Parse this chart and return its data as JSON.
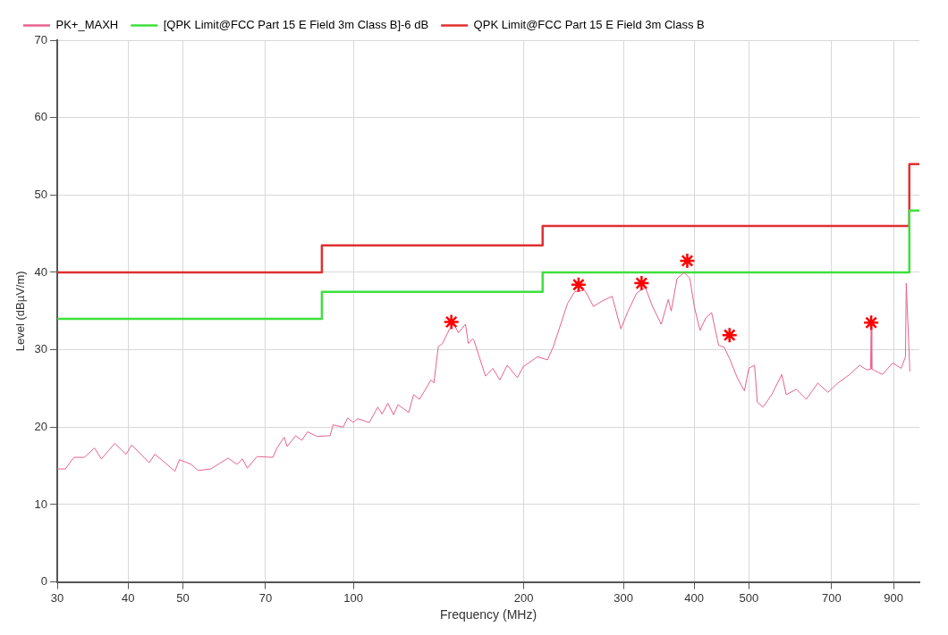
{
  "chart_data": {
    "type": "line",
    "xlabel": "Frequency (MHz)",
    "ylabel": "Level (dBµV/m)",
    "log": "x",
    "grid": true,
    "legend": "top",
    "xlim": [
      30,
      1000
    ],
    "xticks": [
      30,
      40,
      50,
      70,
      100,
      200,
      300,
      400,
      500,
      700,
      900
    ],
    "ylim": [
      0,
      70
    ],
    "yticks": [
      0,
      10,
      20,
      30,
      40,
      50,
      60,
      70
    ],
    "series": [
      {
        "name": "PK+_MAXH",
        "type": "line",
        "color": "#e8628f",
        "marker": "none",
        "x": [
          30,
          31.0,
          32.1,
          33.5,
          34.9,
          35.9,
          37.9,
          39.7,
          40.6,
          43.6,
          44.6,
          46.5,
          48.4,
          49.3,
          51.7,
          53.2,
          56.0,
          60.1,
          62.3,
          63.7,
          65.0,
          67.6,
          72.1,
          73.3,
          75.5,
          76.4,
          79.1,
          81.1,
          83.0,
          86.3,
          91.0,
          92.1,
          96.0,
          97.7,
          100,
          101.8,
          106.7,
          110.5,
          112.4,
          115.1,
          117.8,
          119.9,
          125.3,
          127.8,
          130.9,
          137.2,
          138.8,
          141.3,
          143.7,
          148.0,
          150.6,
          153.4,
          157.8,
          159.7,
          162.5,
          163.4,
          171.2,
          176.4,
          181.5,
          187.0,
          194.9,
          199.6,
          211.5,
          220.3,
          225.6,
          239.1,
          246.2,
          256.4,
          265.6,
          275.2,
          286.6,
          296.9,
          305.8,
          316.5,
          327.8,
          337.7,
          349.9,
          360.1,
          364.4,
          373.2,
          384.0,
          393.2,
          400.2,
          409.7,
          419.3,
          429.5,
          441.9,
          452.2,
          463.1,
          476.6,
          490.8,
          499.7,
          511.5,
          517.4,
          529.7,
          548.4,
          571.4,
          581.8,
          606.3,
          631.2,
          661.6,
          689.1,
          718.0,
          752.8,
          784.2,
          807.4,
          820,
          822,
          824,
          861.0,
          897.2,
          928.8,
          945.0,
          948,
          962
        ],
        "values": [
          14.6,
          14.6,
          16.1,
          16.1,
          17.3,
          15.9,
          17.9,
          16.5,
          17.7,
          15.4,
          16.5,
          15.4,
          14.3,
          15.8,
          15.2,
          14.4,
          14.6,
          16.0,
          15.2,
          15.9,
          14.7,
          16.2,
          16.1,
          17.3,
          18.7,
          17.5,
          18.9,
          18.3,
          19.4,
          18.8,
          18.9,
          20.3,
          20.0,
          21.2,
          20.6,
          21.1,
          20.6,
          22.6,
          21.7,
          23.1,
          21.6,
          22.9,
          21.9,
          24.2,
          23.6,
          26.1,
          25.7,
          30.4,
          30.8,
          32.7,
          33.3,
          32.2,
          33.3,
          30.8,
          31.4,
          31.2,
          26.6,
          27.6,
          26.1,
          28.0,
          26.4,
          27.8,
          29.1,
          28.7,
          30.4,
          36.0,
          37.5,
          37.7,
          35.6,
          36.3,
          36.9,
          32.7,
          35.0,
          37.3,
          38.1,
          35.6,
          33.3,
          36.5,
          35.0,
          39.2,
          40.0,
          39.2,
          35.6,
          32.5,
          34.1,
          34.8,
          30.6,
          30.3,
          28.7,
          26.4,
          24.7,
          27.6,
          28.0,
          23.2,
          22.6,
          24.2,
          26.8,
          24.2,
          24.9,
          23.6,
          25.7,
          24.5,
          25.7,
          26.8,
          28.0,
          27.4,
          27.5,
          33.5,
          27.5,
          26.8,
          28.3,
          27.6,
          29.1,
          38.6,
          27.2
        ]
      },
      {
        "name": "[QPK Limit@FCC Part 15 E Field 3m Class B]-6 dB",
        "type": "step",
        "color": "#3ee03e",
        "marker": "none",
        "x": [
          30,
          88,
          216,
          960,
          1000
        ],
        "values": [
          34,
          37.5,
          40,
          48,
          48
        ]
      },
      {
        "name": "QPK Limit@FCC Part 15 E Field 3m Class B",
        "type": "step",
        "color": "#e03030",
        "marker": "none",
        "x": [
          30,
          88,
          216,
          960,
          1000
        ],
        "values": [
          40,
          43.5,
          46,
          54,
          54
        ]
      },
      {
        "type": "scatter",
        "color": "#ff0000",
        "marker": "cross",
        "x": [
          149,
          250,
          323,
          389,
          462,
          822
        ],
        "values": [
          33.6,
          38.4,
          38.6,
          41.5,
          31.9,
          33.5
        ]
      }
    ]
  }
}
